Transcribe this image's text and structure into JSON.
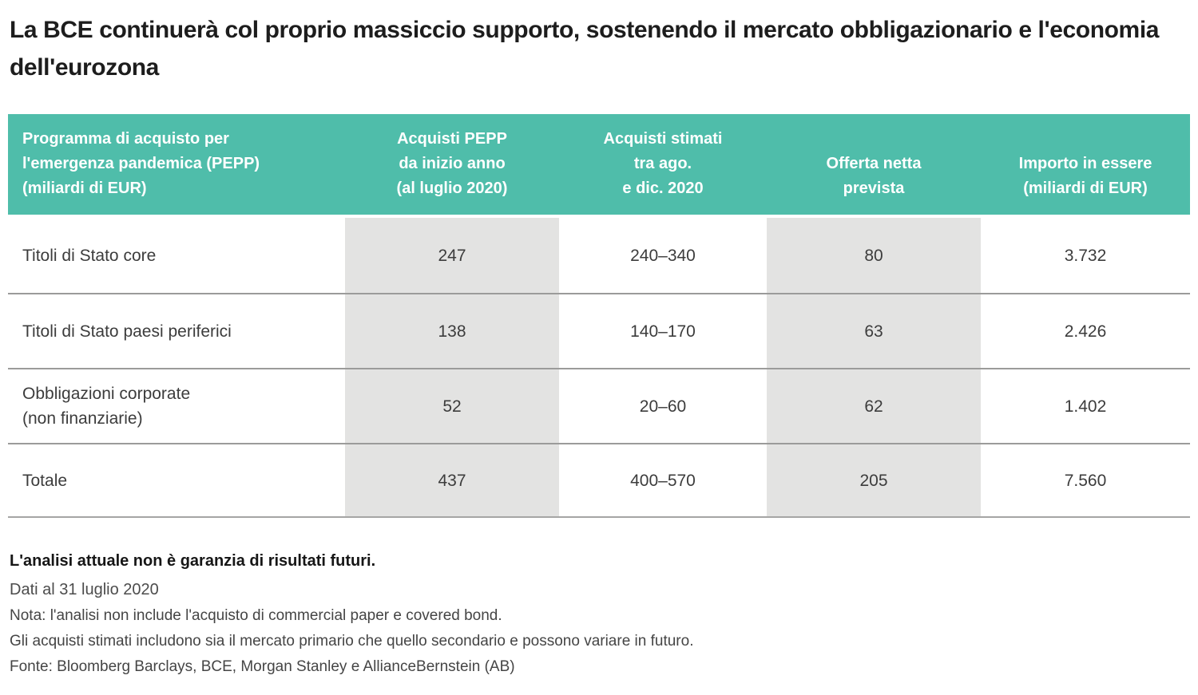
{
  "title": "La BCE continuerà col proprio massiccio supporto, sostenendo il mercato obbligazionario e l'economia dell'eurozona",
  "colors": {
    "header_bg": "#4fbdaa",
    "band_bg": "#e3e3e2",
    "header_text": "#ffffff",
    "separator": "#9b9b9a"
  },
  "chart_data": {
    "type": "table",
    "title": "La BCE continuerà col proprio massiccio supporto, sostenendo il mercato obbligazionario e l'economia dell'eurozona",
    "columns": [
      "Programma di acquisto per\nl'emergenza pandemica (PEPP)\n(miliardi di EUR)",
      "Acquisti PEPP\nda inizio anno\n(al luglio 2020)",
      "Acquisti stimati\ntra ago.\ne dic. 2020",
      "Offerta netta\nprevista",
      "Importo in essere\n(miliardi di EUR)"
    ],
    "rows": [
      {
        "label": "Titoli di Stato core",
        "values": [
          "247",
          "240–340",
          "80",
          "3.732"
        ]
      },
      {
        "label": "Titoli di Stato paesi periferici",
        "values": [
          "138",
          "140–170",
          "63",
          "2.426"
        ]
      },
      {
        "label": "Obbligazioni corporate\n(non finanziarie)",
        "values": [
          "52",
          "20–60",
          "62",
          "1.402"
        ]
      },
      {
        "label": "Totale",
        "values": [
          "437",
          "400–570",
          "205",
          "7.560"
        ]
      }
    ],
    "shaded_columns": [
      "Acquisti PEPP da inizio anno (al luglio 2020)",
      "Offerta netta prevista"
    ]
  },
  "footnotes": {
    "disclaimer": "L'analisi attuale non è garanzia di risultati futuri.",
    "as_of": "Dati al 31 luglio 2020",
    "note1": "Nota: l'analisi non include l'acquisto di commercial paper e covered bond.",
    "note2": "Gli acquisti stimati includono sia il mercato primario che quello secondario e possono variare in futuro.",
    "source": "Fonte: Bloomberg Barclays, BCE, Morgan Stanley e AllianceBernstein (AB)"
  }
}
